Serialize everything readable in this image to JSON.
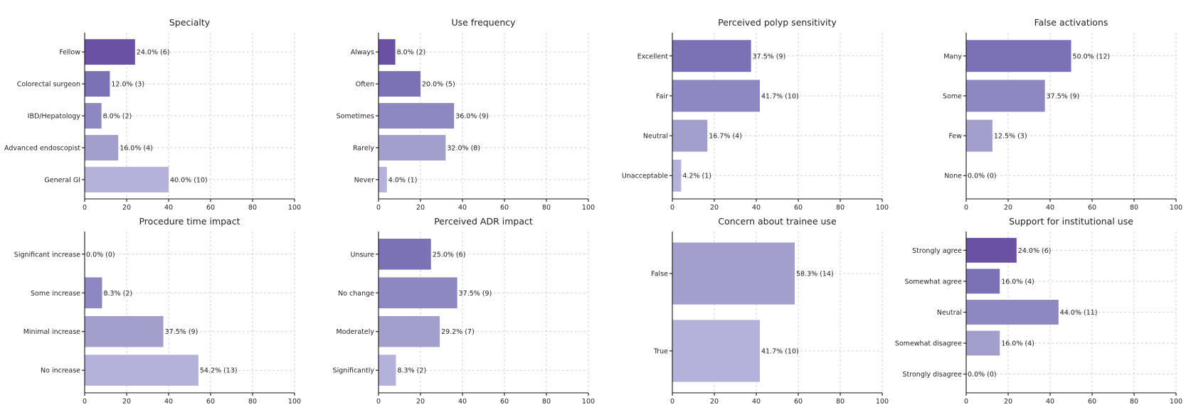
{
  "chart_data": [
    {
      "type": "bar",
      "orientation": "horizontal",
      "title": "Specialty",
      "categories": [
        "Fellow",
        "Colorectal surgeon",
        "IBD/Hepatology",
        "Advanced endoscopist",
        "General GI"
      ],
      "values": [
        24.0,
        12.0,
        8.0,
        16.0,
        40.0
      ],
      "labels": [
        "24.0% (6)",
        "12.0% (3)",
        "8.0% (2)",
        "16.0% (4)",
        "40.0% (10)"
      ],
      "colors": [
        "#6a51a3",
        "#7b72b6",
        "#8d88c2",
        "#a29fcd",
        "#b4b2da"
      ],
      "xlim": [
        0,
        100
      ],
      "xticks": [
        0,
        20,
        40,
        60,
        80,
        100
      ],
      "grid": true
    },
    {
      "type": "bar",
      "orientation": "horizontal",
      "title": "Use frequency",
      "categories": [
        "Always",
        "Often",
        "Sometimes",
        "Rarely",
        "Never"
      ],
      "values": [
        8.0,
        20.0,
        36.0,
        32.0,
        4.0
      ],
      "labels": [
        "8.0% (2)",
        "20.0% (5)",
        "36.0% (9)",
        "32.0% (8)",
        "4.0% (1)"
      ],
      "colors": [
        "#6a51a3",
        "#7b72b6",
        "#8d88c2",
        "#a29fcd",
        "#b4b2da"
      ],
      "xlim": [
        0,
        100
      ],
      "xticks": [
        0,
        20,
        40,
        60,
        80,
        100
      ],
      "grid": true
    },
    {
      "type": "bar",
      "orientation": "horizontal",
      "title": "Perceived polyp sensitivity",
      "categories": [
        "Excellent",
        "Fair",
        "Neutral",
        "Unacceptable"
      ],
      "values": [
        37.5,
        41.7,
        16.7,
        4.2
      ],
      "labels": [
        "37.5% (9)",
        "41.7% (10)",
        "16.7% (4)",
        "4.2% (1)"
      ],
      "colors": [
        "#7b72b6",
        "#8d88c2",
        "#a29fcd",
        "#b4b2da"
      ],
      "xlim": [
        0,
        100
      ],
      "xticks": [
        0,
        20,
        40,
        60,
        80,
        100
      ],
      "grid": true
    },
    {
      "type": "bar",
      "orientation": "horizontal",
      "title": "False activations",
      "categories": [
        "Many",
        "Some",
        "Few",
        "None"
      ],
      "values": [
        50.0,
        37.5,
        12.5,
        0.0
      ],
      "labels": [
        "50.0% (12)",
        "37.5% (9)",
        "12.5% (3)",
        "0.0% (0)"
      ],
      "colors": [
        "#7b72b6",
        "#8d88c2",
        "#a29fcd",
        "#b4b2da"
      ],
      "xlim": [
        0,
        100
      ],
      "xticks": [
        0,
        20,
        40,
        60,
        80,
        100
      ],
      "grid": true
    },
    {
      "type": "bar",
      "orientation": "horizontal",
      "title": "Procedure time impact",
      "categories": [
        "Significant increase",
        "Some increase",
        "Minimal increase",
        "No increase"
      ],
      "values": [
        0.0,
        8.3,
        37.5,
        54.2
      ],
      "labels": [
        "0.0% (0)",
        "8.3% (2)",
        "37.5% (9)",
        "54.2% (13)"
      ],
      "colors": [
        "#7b72b6",
        "#8d88c2",
        "#a29fcd",
        "#b4b2da"
      ],
      "xlim": [
        0,
        100
      ],
      "xticks": [
        0,
        20,
        40,
        60,
        80,
        100
      ],
      "grid": true
    },
    {
      "type": "bar",
      "orientation": "horizontal",
      "title": "Perceived ADR impact",
      "categories": [
        "Unsure",
        "No change",
        "Moderately",
        "Significantly"
      ],
      "values": [
        25.0,
        37.5,
        29.2,
        8.3
      ],
      "labels": [
        "25.0% (6)",
        "37.5% (9)",
        "29.2% (7)",
        "8.3% (2)"
      ],
      "colors": [
        "#7b72b6",
        "#8d88c2",
        "#a29fcd",
        "#b4b2da"
      ],
      "xlim": [
        0,
        100
      ],
      "xticks": [
        0,
        20,
        40,
        60,
        80,
        100
      ],
      "grid": true
    },
    {
      "type": "bar",
      "orientation": "horizontal",
      "title": "Concern about trainee use",
      "categories": [
        "False",
        "True"
      ],
      "values": [
        58.3,
        41.7
      ],
      "labels": [
        "58.3% (14)",
        "41.7% (10)"
      ],
      "colors": [
        "#a29fcd",
        "#b4b2da"
      ],
      "xlim": [
        0,
        100
      ],
      "xticks": [
        0,
        20,
        40,
        60,
        80,
        100
      ],
      "grid": true
    },
    {
      "type": "bar",
      "orientation": "horizontal",
      "title": "Support for institutional use",
      "categories": [
        "Strongly agree",
        "Somewhat agree",
        "Neutral",
        "Somewhat disagree",
        "Strongly disagree"
      ],
      "values": [
        24.0,
        16.0,
        44.0,
        16.0,
        0.0
      ],
      "labels": [
        "24.0% (6)",
        "16.0% (4)",
        "44.0% (11)",
        "16.0% (4)",
        "0.0% (0)"
      ],
      "colors": [
        "#6a51a3",
        "#7b72b6",
        "#8d88c2",
        "#a29fcd",
        "#b4b2da"
      ],
      "xlim": [
        0,
        100
      ],
      "xticks": [
        0,
        20,
        40,
        60,
        80,
        100
      ],
      "grid": true
    }
  ]
}
